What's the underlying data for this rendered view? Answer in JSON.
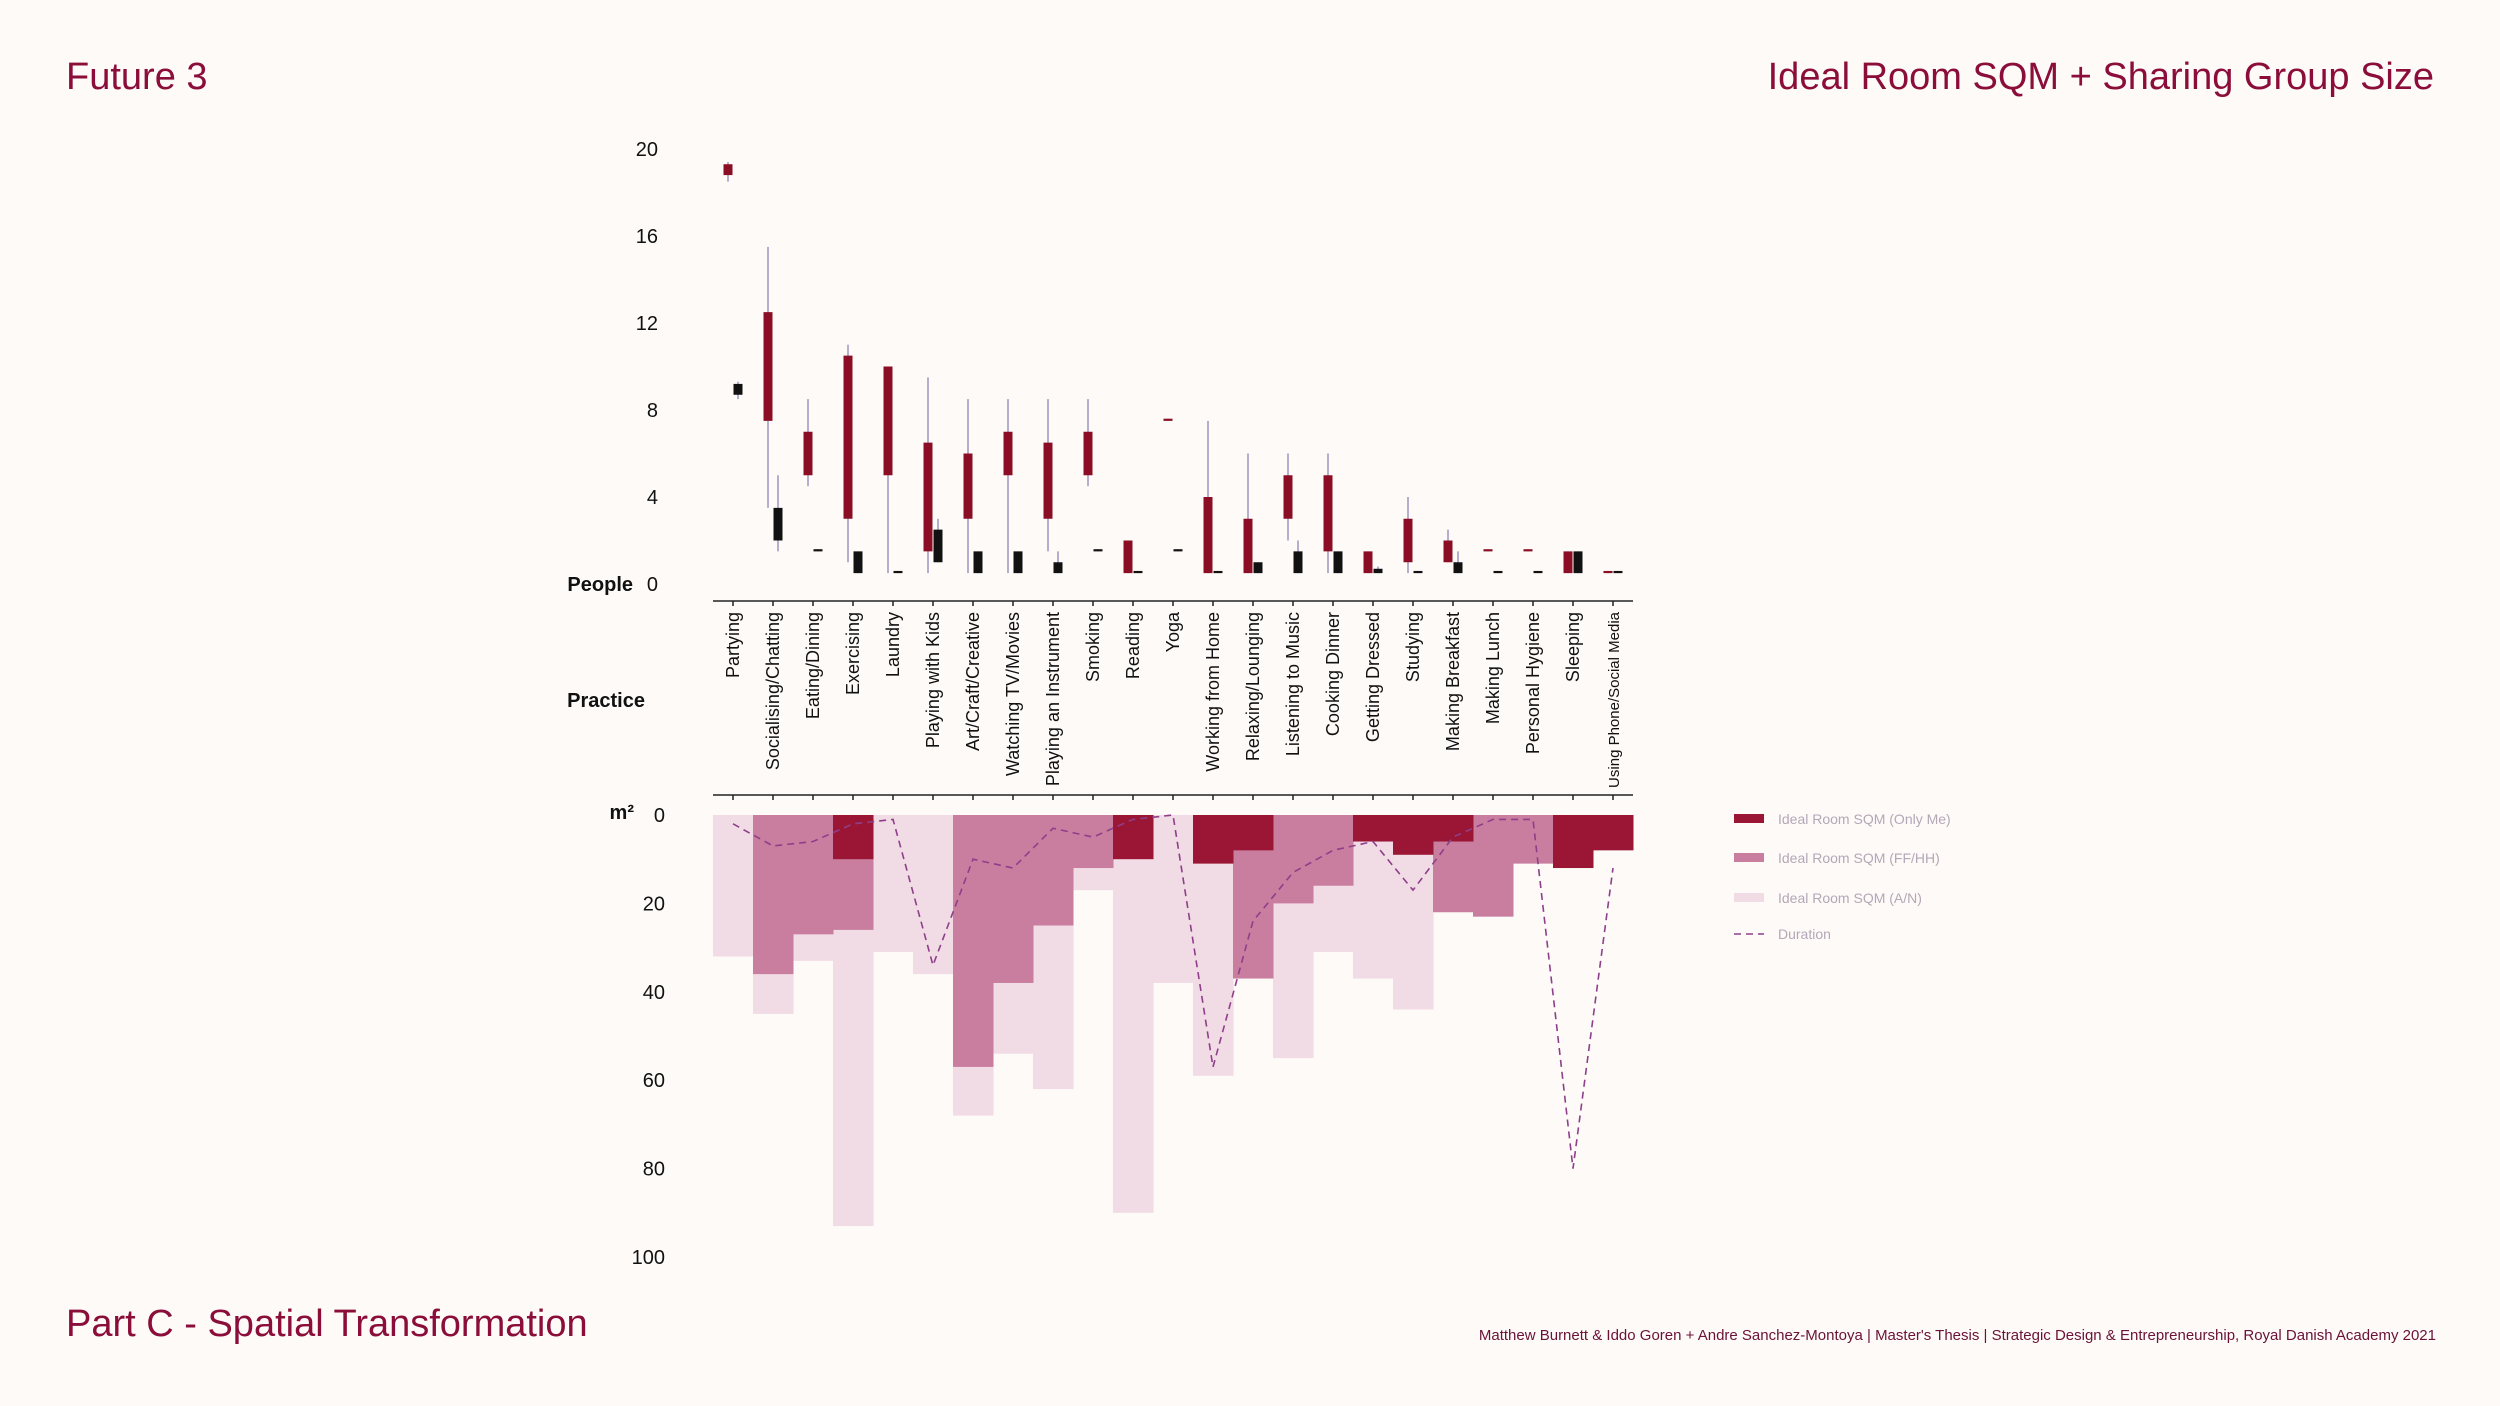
{
  "header": {
    "left": "Future 3",
    "right": "Ideal Room SQM + Sharing Group Size"
  },
  "footer": {
    "left": "Part C - Spatial Transformation",
    "credits": "Matthew Burnett & Iddo Goren +  Andre Sanchez-Montoya | Master's Thesis | Strategic Design & Entrepreneurship, Royal Danish Academy 2021"
  },
  "colors": {
    "candle_red": "#8b0e25",
    "candle_black": "#111111",
    "only_me": "#9b1535",
    "ff_hh": "#c97ea0",
    "a_n": "#f1dbe5",
    "duration": "#8e3f8a"
  },
  "chart_data": {
    "type": "candlestick + stacked step area",
    "top_panel": {
      "ylabel": "People",
      "ylim": [
        0,
        20
      ],
      "yticks": [
        0,
        4,
        8,
        12,
        16,
        20
      ]
    },
    "practice_label": "Practice",
    "bottom_panel": {
      "ylabel": "m²",
      "ylim": [
        0,
        100
      ],
      "yticks": [
        0,
        20,
        40,
        60,
        80,
        100
      ],
      "inverted": true
    },
    "categories": [
      "Partying",
      "Socialising/Chatting",
      "Eating/Dining",
      "Exercising",
      "Laundry",
      "Playing with Kids",
      "Art/Craft/Creative",
      "Watching TV/Movies",
      "Playing an Instrument",
      "Smoking",
      "Reading",
      "Yoga",
      "Working from Home",
      "Relaxing/Lounging",
      "Listening to Music",
      "Cooking Dinner",
      "Getting Dressed",
      "Studying",
      "Making Breakfast",
      "Making Lunch",
      "Personal Hygiene",
      "Sleeping",
      "Using Phone/Social Media"
    ],
    "people_red": [
      {
        "low": 18.5,
        "q1": 18.8,
        "q3": 19.3,
        "high": 19.4
      },
      {
        "low": 3.5,
        "q1": 7.5,
        "q3": 12.5,
        "high": 15.5
      },
      {
        "low": 4.5,
        "q1": 5,
        "q3": 7,
        "high": 8.5
      },
      {
        "low": 1,
        "q1": 3,
        "q3": 10.5,
        "high": 11
      },
      {
        "low": 0.5,
        "q1": 5,
        "q3": 10,
        "high": 10
      },
      {
        "low": 0.5,
        "q1": 1.5,
        "q3": 6.5,
        "high": 9.5
      },
      {
        "low": 0.5,
        "q1": 3,
        "q3": 6,
        "high": 8.5
      },
      {
        "low": 0.5,
        "q1": 5,
        "q3": 7,
        "high": 8.5
      },
      {
        "low": 1.5,
        "q1": 3,
        "q3": 6.5,
        "high": 8.5
      },
      {
        "low": 4.5,
        "q1": 5,
        "q3": 7,
        "high": 8.5
      },
      {
        "low": 0.5,
        "q1": 0.5,
        "q3": 2,
        "high": 2
      },
      {
        "low": 7.5,
        "q1": 7.5,
        "q3": 7.6,
        "high": 7.6
      },
      {
        "low": 0.5,
        "q1": 0.5,
        "q3": 4,
        "high": 7.5
      },
      {
        "low": 0.5,
        "q1": 0.5,
        "q3": 3,
        "high": 6
      },
      {
        "low": 2,
        "q1": 3,
        "q3": 5,
        "high": 6
      },
      {
        "low": 0.5,
        "q1": 1.5,
        "q3": 5,
        "high": 6
      },
      {
        "low": 0.5,
        "q1": 0.5,
        "q3": 1.5,
        "high": 1.5
      },
      {
        "low": 0.5,
        "q1": 1,
        "q3": 3,
        "high": 4
      },
      {
        "low": 1,
        "q1": 1,
        "q3": 2,
        "high": 2.5
      },
      {
        "low": 1.5,
        "q1": 1.5,
        "q3": 1.6,
        "high": 1.6
      },
      {
        "low": 1.5,
        "q1": 1.5,
        "q3": 1.6,
        "high": 1.6
      },
      {
        "low": 0.5,
        "q1": 0.5,
        "q3": 1.5,
        "high": 1.5
      },
      {
        "low": 0.5,
        "q1": 0.5,
        "q3": 0.6,
        "high": 0.6
      }
    ],
    "people_black": [
      {
        "low": 8.5,
        "q1": 8.7,
        "q3": 9.2,
        "high": 9.3
      },
      {
        "low": 1.5,
        "q1": 2,
        "q3": 3.5,
        "high": 5
      },
      {
        "low": 1.5,
        "q1": 1.5,
        "q3": 1.6,
        "high": 1.6
      },
      {
        "low": 0.5,
        "q1": 0.5,
        "q3": 1.5,
        "high": 1.5
      },
      {
        "low": 0.5,
        "q1": 0.5,
        "q3": 0.6,
        "high": 0.6
      },
      {
        "low": 1,
        "q1": 1,
        "q3": 2.5,
        "high": 3
      },
      {
        "low": 0.5,
        "q1": 0.5,
        "q3": 1.5,
        "high": 1.5
      },
      {
        "low": 0.5,
        "q1": 0.5,
        "q3": 1.5,
        "high": 1.5
      },
      {
        "low": 0.5,
        "q1": 0.5,
        "q3": 1,
        "high": 1.5
      },
      {
        "low": 1.5,
        "q1": 1.5,
        "q3": 1.6,
        "high": 1.6
      },
      {
        "low": 0.5,
        "q1": 0.5,
        "q3": 0.6,
        "high": 0.6
      },
      {
        "low": 1.5,
        "q1": 1.5,
        "q3": 1.6,
        "high": 1.6
      },
      {
        "low": 0.5,
        "q1": 0.5,
        "q3": 0.6,
        "high": 0.6
      },
      {
        "low": 0.5,
        "q1": 0.5,
        "q3": 1,
        "high": 1
      },
      {
        "low": 0.5,
        "q1": 0.5,
        "q3": 1.5,
        "high": 2
      },
      {
        "low": 0.5,
        "q1": 0.5,
        "q3": 1.5,
        "high": 1.5
      },
      {
        "low": 0.5,
        "q1": 0.5,
        "q3": 0.7,
        "high": 0.8
      },
      {
        "low": 0.5,
        "q1": 0.5,
        "q3": 0.6,
        "high": 0.6
      },
      {
        "low": 0.5,
        "q1": 0.5,
        "q3": 1,
        "high": 1.5
      },
      {
        "low": 0.5,
        "q1": 0.5,
        "q3": 0.6,
        "high": 0.6
      },
      {
        "low": 0.5,
        "q1": 0.5,
        "q3": 0.6,
        "high": 0.6
      },
      {
        "low": 0.5,
        "q1": 0.5,
        "q3": 1.5,
        "high": 1.5
      },
      {
        "low": 0.5,
        "q1": 0.5,
        "q3": 0.6,
        "high": 0.6
      }
    ],
    "sqm_only_me": [
      0,
      0,
      0,
      10,
      0,
      0,
      0,
      0,
      0,
      0,
      10,
      0,
      11,
      8,
      0,
      0,
      6,
      9,
      6,
      0,
      0,
      12,
      8
    ],
    "sqm_ff_hh": [
      0,
      36,
      27,
      26,
      0,
      0,
      57,
      38,
      25,
      12,
      0,
      0,
      0,
      37,
      20,
      16,
      0,
      0,
      22,
      23,
      11,
      0,
      0
    ],
    "sqm_a_n": [
      32,
      45,
      33,
      93,
      31,
      36,
      68,
      54,
      62,
      17,
      90,
      38,
      59,
      0,
      55,
      31,
      37,
      44,
      0,
      0,
      0,
      0,
      0
    ],
    "duration": [
      2,
      7,
      6,
      2,
      1,
      34,
      10,
      12,
      3,
      5,
      1,
      0,
      57,
      24,
      13,
      8,
      6,
      17,
      5,
      1,
      1,
      80,
      12
    ],
    "legend": [
      "Ideal Room SQM (Only Me)",
      "Ideal Room SQM (FF/HH)",
      "Ideal Room SQM (A/N)",
      "Duration"
    ],
    "legend_position": "right"
  }
}
